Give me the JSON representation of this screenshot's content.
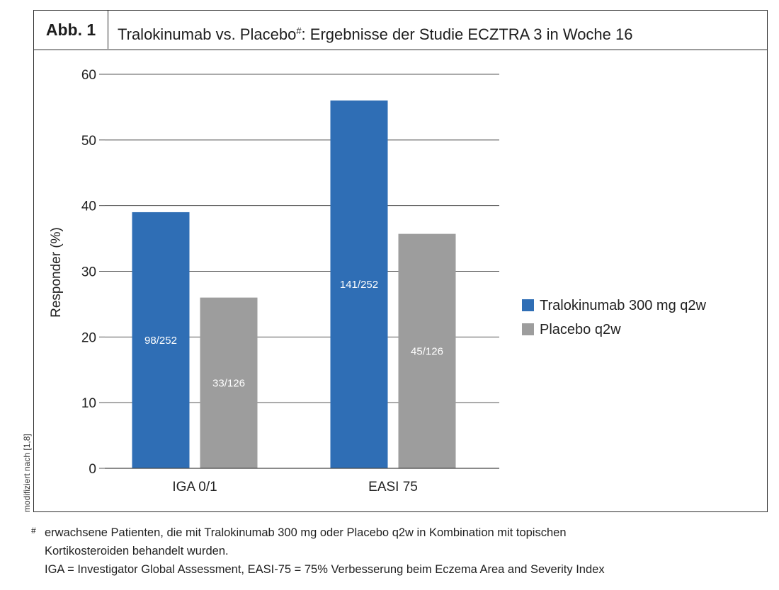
{
  "header": {
    "figure_label": "Abb. 1",
    "title_part1": "Tralokinumab vs. Placebo",
    "title_mark": "#",
    "title_part2": ": Ergebnisse der Studie ECZTRA 3 in Woche 16"
  },
  "side_note": "modifiziert nach [1,8]",
  "footnote": {
    "mark": "#",
    "line1": "erwachsene Patienten, die mit Tralokinumab 300 mg oder Placebo q2w in Kombination mit topischen",
    "line2": "Kortikosteroiden behandelt wurden.",
    "line3": "IGA = Investigator Global Assessment, EASI-75 = 75% Verbesserung beim Eczema Area and Severity Index"
  },
  "chart_data": {
    "type": "bar",
    "categories": [
      "IGA 0/1",
      "EASI 75"
    ],
    "series": [
      {
        "name": "Tralokinumab 300 mg q2w",
        "values": [
          39,
          56
        ],
        "bar_labels": [
          "98/252",
          "141/252"
        ],
        "color": "#2f6eb5"
      },
      {
        "name": "Placebo q2w",
        "values": [
          26,
          35.7
        ],
        "bar_labels": [
          "33/126",
          "45/126"
        ],
        "color": "#9d9d9d"
      }
    ],
    "ylabel": "Responder (%)",
    "ylim": [
      0,
      60
    ],
    "yticks": [
      "0",
      "10",
      "20",
      "30",
      "40",
      "50",
      "60"
    ],
    "grid": true,
    "legend_position": "right"
  }
}
